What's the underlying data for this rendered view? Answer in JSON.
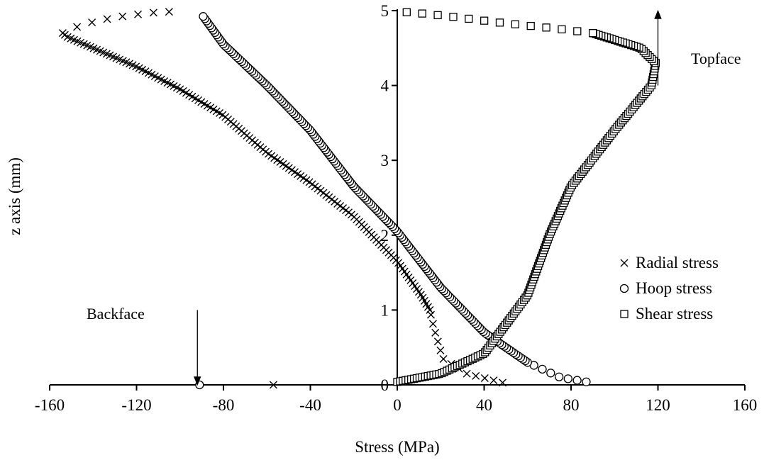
{
  "chart_data": {
    "type": "scatter",
    "xlabel": "Stress (MPa)",
    "ylabel": "z axis (mm)",
    "xlim": [
      -160,
      160
    ],
    "ylim": [
      0,
      5
    ],
    "x_ticks": [
      -160,
      -120,
      -80,
      -40,
      0,
      40,
      80,
      120,
      160
    ],
    "y_ticks": [
      0,
      1,
      2,
      3,
      4,
      5
    ],
    "x_tick_labels": [
      "-160",
      "-120",
      "-80",
      "-40",
      "0",
      "40",
      "80",
      "120",
      "160"
    ],
    "y_tick_labels": [
      "0",
      "1",
      "2",
      "3",
      "4",
      "5"
    ],
    "grid": false,
    "legend_position": "lower-right",
    "series": [
      {
        "name": "Radial stress",
        "marker": "cross",
        "color": "#000000",
        "anchors": [
          [
            48.5,
            0.03
          ],
          [
            32,
            0.15
          ],
          [
            21,
            0.35
          ],
          [
            17,
            0.75
          ],
          [
            15,
            1.0
          ],
          [
            11,
            1.2
          ],
          [
            0,
            1.65
          ],
          [
            -20,
            2.25
          ],
          [
            -40,
            2.7
          ],
          [
            -60,
            3.1
          ],
          [
            -80,
            3.6
          ],
          [
            -100,
            3.95
          ],
          [
            -120,
            4.25
          ],
          [
            -140,
            4.5
          ],
          [
            -152,
            4.65
          ],
          [
            -154,
            4.7
          ],
          [
            -146,
            4.8
          ],
          [
            -137,
            4.87
          ],
          [
            -125,
            4.93
          ],
          [
            -114,
            4.97
          ],
          [
            -102,
            4.99
          ]
        ],
        "extra_points": [
          [
            -57,
            0.0
          ]
        ]
      },
      {
        "name": "Hoop stress",
        "marker": "circle",
        "color": "#000000",
        "anchors": [
          [
            87,
            0.04
          ],
          [
            75,
            0.1
          ],
          [
            60,
            0.3
          ],
          [
            40,
            0.7
          ],
          [
            20,
            1.3
          ],
          [
            0,
            2.05
          ],
          [
            -20,
            2.65
          ],
          [
            -40,
            3.4
          ],
          [
            -60,
            4.0
          ],
          [
            -80,
            4.55
          ],
          [
            -90,
            4.95
          ]
        ],
        "extra_points": [
          [
            -91,
            0.0
          ]
        ]
      },
      {
        "name": "Shear stress",
        "marker": "square",
        "color": "#000000",
        "anchors": [
          [
            0,
            0.04
          ],
          [
            20,
            0.15
          ],
          [
            40,
            0.42
          ],
          [
            60,
            1.2
          ],
          [
            70,
            2.0
          ],
          [
            80,
            2.65
          ],
          [
            100,
            3.4
          ],
          [
            117,
            4.0
          ],
          [
            119,
            4.3
          ],
          [
            112,
            4.5
          ],
          [
            90,
            4.7
          ],
          [
            70,
            4.77
          ],
          [
            50,
            4.83
          ],
          [
            25,
            4.92
          ],
          [
            12,
            4.96
          ],
          [
            0,
            4.99
          ]
        ],
        "extra_points": []
      }
    ],
    "annotations": [
      {
        "text": "Topface",
        "arrow": "up",
        "at": [
          120,
          4.0
        ],
        "to": [
          120,
          4.95
        ]
      },
      {
        "text": "Backface",
        "arrow": "down",
        "at": [
          -92,
          1.0
        ],
        "to": [
          -92,
          0.05
        ]
      }
    ]
  }
}
